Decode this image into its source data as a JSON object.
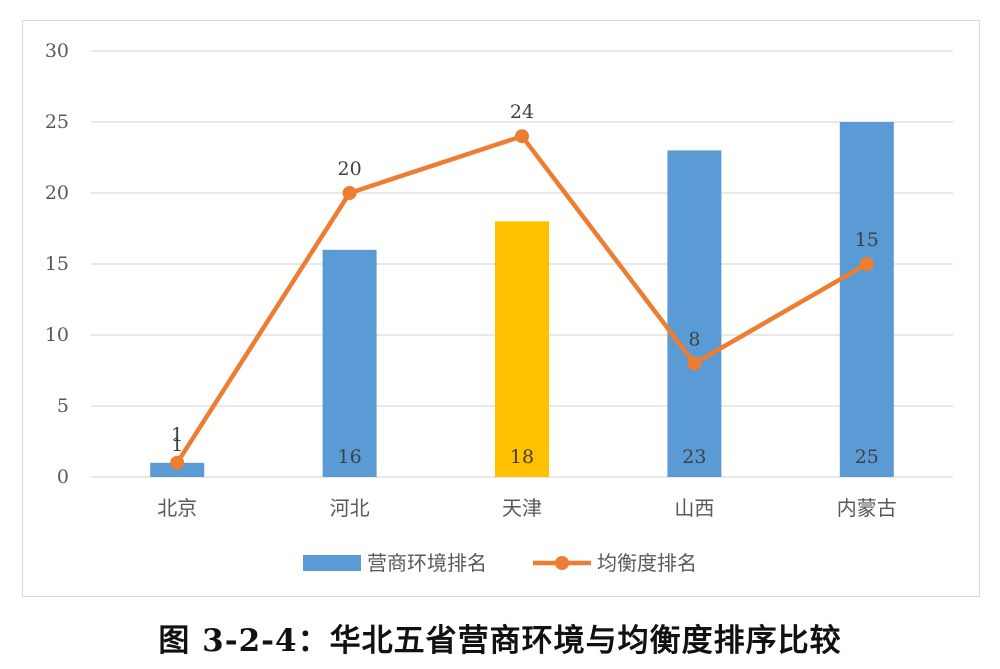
{
  "caption": "图 3-2-4：华北五省营商环境与均衡度排序比较",
  "chart_data": {
    "type": "bar",
    "title": "",
    "xlabel": "",
    "ylabel": "",
    "categories": [
      "北京",
      "河北",
      "天津",
      "山西",
      "内蒙古"
    ],
    "ylim": [
      0,
      30
    ],
    "yticks": [
      0,
      5,
      10,
      15,
      20,
      25,
      30
    ],
    "grid": true,
    "legend_position": "bottom",
    "series": [
      {
        "name": "营商环境排名",
        "type": "bar",
        "values": [
          1,
          16,
          18,
          23,
          25
        ],
        "color": "#5b9bd5",
        "highlight": {
          "category": "天津",
          "color": "#ffc000"
        }
      },
      {
        "name": "均衡度排名",
        "type": "line",
        "values": [
          1,
          20,
          24,
          8,
          15
        ],
        "color": "#ed7d31"
      }
    ]
  }
}
